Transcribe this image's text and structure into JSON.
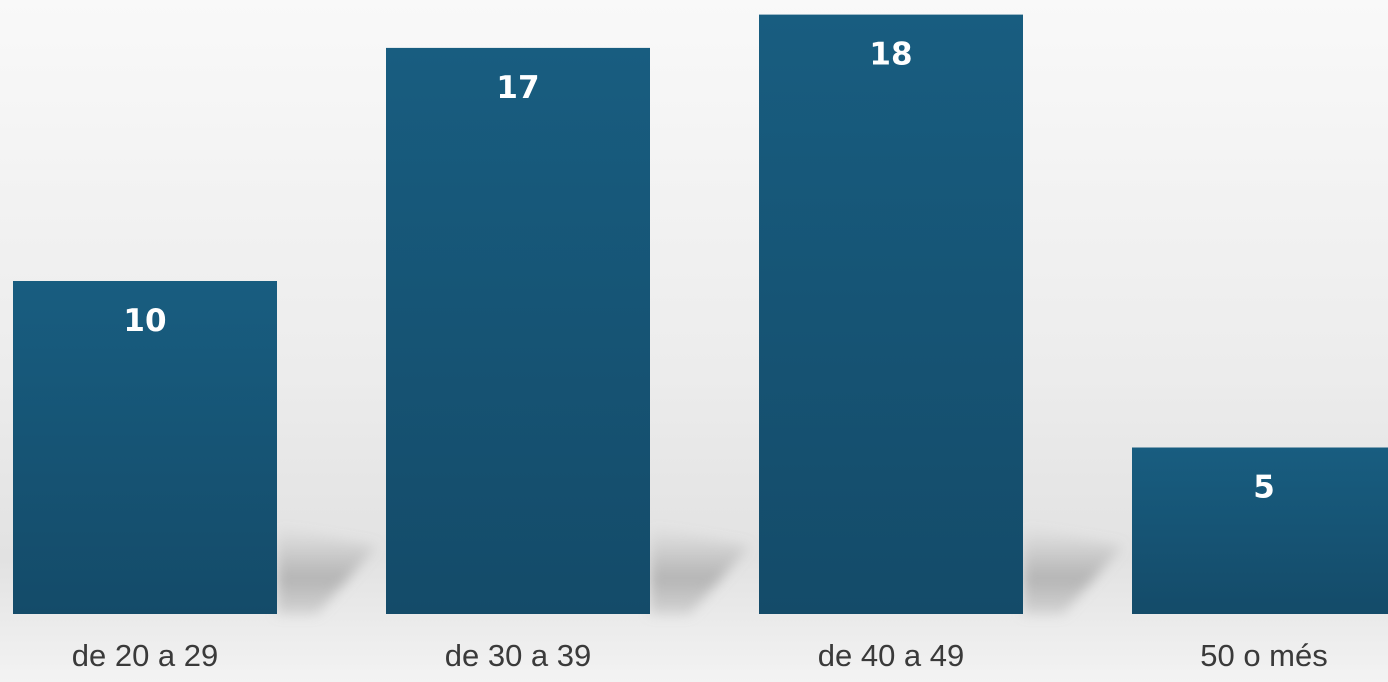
{
  "chart_data": {
    "type": "bar",
    "categories": [
      "de 20 a 29",
      "de 30 a 39",
      "de 40 a 49",
      "50 o més"
    ],
    "values": [
      10,
      17,
      18,
      5
    ],
    "data_labels": [
      "10",
      "17",
      "18",
      "5"
    ],
    "title": "",
    "xlabel": "",
    "ylabel": "",
    "grid": false,
    "legend": "none",
    "colors": {
      "bar_top": "#185d80",
      "bar_bottom": "#144b69",
      "label_text": "#ffffff",
      "tick_text": "#3a3a3a"
    }
  }
}
